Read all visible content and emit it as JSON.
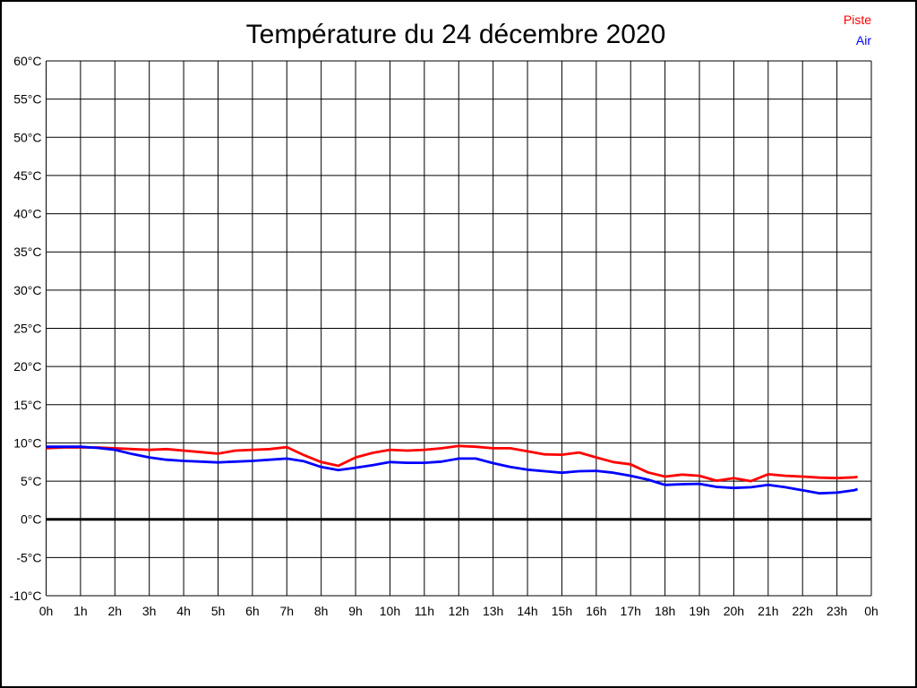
{
  "title": "Température du 24 décembre 2020",
  "legend": {
    "position": "top-right",
    "items": [
      {
        "label": "Piste",
        "color": "#ff0000"
      },
      {
        "label": "Air",
        "color": "#0000ff"
      }
    ]
  },
  "colors": {
    "background": "#ffffff",
    "grid": "#000000",
    "zero_line": "#000000",
    "border": "#000000",
    "piste": "#ff0000",
    "air": "#0000ff"
  },
  "chart_data": {
    "type": "line",
    "title": "Température du 24 décembre 2020",
    "xlabel": "",
    "ylabel": "",
    "xlim": [
      0,
      24
    ],
    "ylim": [
      -10,
      60
    ],
    "y_step": 5,
    "grid": true,
    "zero_line_thick": true,
    "legend_position": "top-right",
    "x_tick_labels": [
      "0h",
      "1h",
      "2h",
      "3h",
      "4h",
      "5h",
      "6h",
      "7h",
      "8h",
      "9h",
      "10h",
      "11h",
      "12h",
      "13h",
      "14h",
      "15h",
      "16h",
      "17h",
      "18h",
      "19h",
      "20h",
      "21h",
      "22h",
      "23h",
      "0h"
    ],
    "y_tick_labels": [
      "60°C",
      "55°C",
      "50°C",
      "45°C",
      "40°C",
      "35°C",
      "30°C",
      "25°C",
      "20°C",
      "15°C",
      "10°C",
      "5°C",
      "0°C",
      "-5°C",
      "-10°C"
    ],
    "x_unit": "hours",
    "y_unit": "°C",
    "series": [
      {
        "name": "Piste",
        "color": "#ff0000",
        "x": [
          0,
          0.5,
          1,
          1.5,
          2,
          2.5,
          3,
          3.5,
          4,
          4.5,
          5,
          5.5,
          6,
          6.5,
          7,
          7.5,
          8,
          8.5,
          9,
          9.5,
          10,
          10.5,
          11,
          11.5,
          12,
          12.5,
          13,
          13.5,
          14,
          14.5,
          15,
          15.5,
          16,
          16.5,
          17,
          17.5,
          18,
          18.5,
          19,
          19.5,
          20,
          20.5,
          21,
          21.5,
          22,
          22.5,
          23,
          23.5,
          23.6
        ],
        "values": [
          9.3,
          9.4,
          9.4,
          9.4,
          9.3,
          9.2,
          9.1,
          9.2,
          9.0,
          8.8,
          8.6,
          9.0,
          9.1,
          9.2,
          9.45,
          8.4,
          7.5,
          7.0,
          8.1,
          8.7,
          9.1,
          9.0,
          9.1,
          9.3,
          9.6,
          9.5,
          9.3,
          9.3,
          8.9,
          8.5,
          8.45,
          8.75,
          8.1,
          7.5,
          7.2,
          6.15,
          5.6,
          5.85,
          5.7,
          5.05,
          5.4,
          5.0,
          5.9,
          5.7,
          5.6,
          5.45,
          5.4,
          5.5,
          5.55
        ]
      },
      {
        "name": "Air",
        "color": "#0000ff",
        "x": [
          0,
          0.5,
          1,
          1.5,
          2,
          2.5,
          3,
          3.5,
          4,
          4.5,
          5,
          5.5,
          6,
          6.5,
          7,
          7.5,
          8,
          8.5,
          9,
          9.5,
          10,
          10.5,
          11,
          11.5,
          12,
          12.5,
          13,
          13.5,
          14,
          14.5,
          15,
          15.5,
          16,
          16.5,
          17,
          17.5,
          18,
          18.5,
          19,
          19.5,
          20,
          20.5,
          21,
          21.5,
          22,
          22.5,
          23,
          23.5,
          23.6
        ],
        "values": [
          9.5,
          9.5,
          9.5,
          9.35,
          9.1,
          8.55,
          8.1,
          7.8,
          7.65,
          7.55,
          7.45,
          7.55,
          7.65,
          7.8,
          7.95,
          7.6,
          6.85,
          6.45,
          6.75,
          7.1,
          7.5,
          7.4,
          7.4,
          7.55,
          7.95,
          7.95,
          7.35,
          6.85,
          6.5,
          6.3,
          6.1,
          6.3,
          6.35,
          6.1,
          5.7,
          5.2,
          4.5,
          4.6,
          4.65,
          4.25,
          4.1,
          4.2,
          4.5,
          4.2,
          3.8,
          3.4,
          3.5,
          3.8,
          3.95
        ]
      }
    ]
  }
}
